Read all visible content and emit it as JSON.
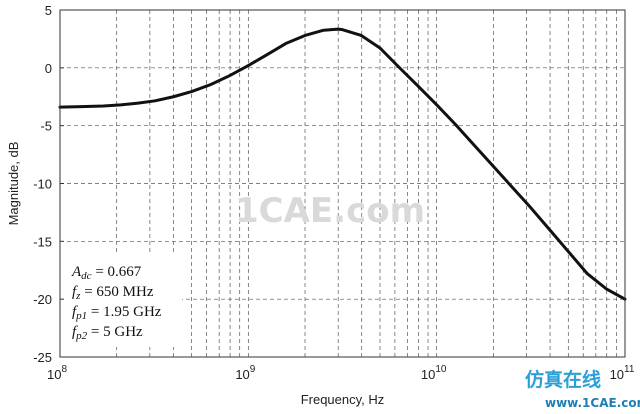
{
  "chart_data": {
    "type": "line",
    "x_scale": "log",
    "xlabel": "Frequency, Hz",
    "ylabel": "Magnitude, dB",
    "xlim": [
      100000000,
      100000000000
    ],
    "ylim": [
      -25,
      5
    ],
    "x_ticks": [
      {
        "value": 100000000,
        "base": "10",
        "exp": "8"
      },
      {
        "value": 1000000000,
        "base": "10",
        "exp": "9"
      },
      {
        "value": 10000000000,
        "base": "10",
        "exp": "10"
      },
      {
        "value": 100000000000,
        "base": "10",
        "exp": "11"
      }
    ],
    "y_ticks": [
      5,
      0,
      -5,
      -10,
      -15,
      -20,
      -25
    ],
    "grid": true,
    "series": [
      {
        "color": "#111111",
        "x": [
          100000000,
          130000000,
          170000000,
          210000000,
          260000000,
          320000000,
          400000000,
          500000000,
          630000000,
          790000000,
          1000000000,
          1260000000,
          1580000000,
          2000000000,
          2510000000,
          3000000000,
          3160000000,
          3980000000,
          5010000000,
          6310000000,
          7940000000,
          10000000000,
          12590000000,
          15850000000,
          19950000000,
          25120000000,
          31620000000,
          39810000000,
          50120000000,
          63100000000,
          79430000000,
          100000000000
        ],
        "y": [
          -3.4,
          -3.35,
          -3.3,
          -3.2,
          -3.05,
          -2.85,
          -2.5,
          -2.05,
          -1.45,
          -0.7,
          0.2,
          1.15,
          2.1,
          2.8,
          3.25,
          3.35,
          3.3,
          2.8,
          1.7,
          0.05,
          -1.55,
          -3.2,
          -4.9,
          -6.7,
          -8.5,
          -10.3,
          -12.1,
          -14.0,
          -15.9,
          -17.8,
          -19.1,
          -20.0
        ]
      }
    ],
    "annotations": [
      {
        "var": "A",
        "sub": "dc",
        "value": " = 0.667"
      },
      {
        "var": "f",
        "sub": "z",
        "value": " = 650 MHz"
      },
      {
        "var": "f",
        "sub": "p1",
        "value": " = 1.95 GHz"
      },
      {
        "var": "f",
        "sub": "p2",
        "value": " = 5 GHz"
      }
    ]
  },
  "watermark": {
    "text": "1CAE.com",
    "logo_text": "仿真在线",
    "logo_url": "www.1CAE.com"
  }
}
